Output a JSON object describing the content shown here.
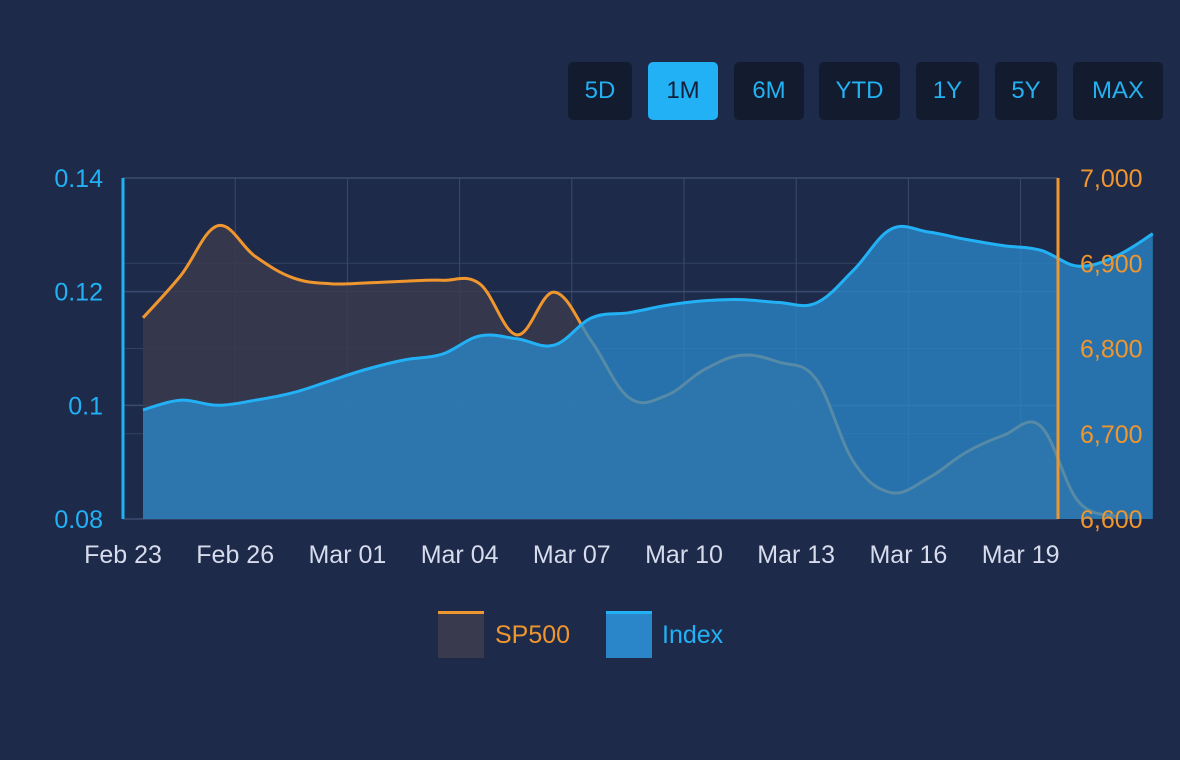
{
  "range_selector": {
    "buttons": [
      {
        "label": "5D",
        "active": false
      },
      {
        "label": "1M",
        "active": true
      },
      {
        "label": "6M",
        "active": false
      },
      {
        "label": "YTD",
        "active": false
      },
      {
        "label": "1Y",
        "active": false
      },
      {
        "label": "5Y",
        "active": false
      },
      {
        "label": "MAX",
        "active": false
      }
    ]
  },
  "colors": {
    "background": "#1e2a4a",
    "index": "#22b1f5",
    "index_fill": "#2a86c8",
    "sp500": "#f0962e",
    "sp500_fill": "#3a3a4e",
    "grid": "#3b4a6e",
    "xtick": "#d6dcec",
    "button_bg": "#131b2e"
  },
  "chart_data": {
    "type": "area",
    "x_ticks": [
      "Feb 23",
      "Feb 26",
      "Mar 01",
      "Mar 04",
      "Mar 07",
      "Mar 10",
      "Mar 13",
      "Mar 16",
      "Mar 19"
    ],
    "x_range": [
      "2024-02-23",
      "2024-03-19"
    ],
    "y_left": {
      "min": 0.08,
      "max": 0.14,
      "ticks": [
        "0.08",
        "0.1",
        "0.12",
        "0.14"
      ],
      "tick_values": [
        0.08,
        0.1,
        0.12,
        0.14
      ]
    },
    "y_right": {
      "min": 6600,
      "max": 7000,
      "ticks": [
        "6,600",
        "6,700",
        "6,800",
        "6,900",
        "7,000"
      ],
      "tick_values": [
        6600,
        6700,
        6800,
        6900,
        7000
      ]
    },
    "grid": true,
    "legend_position": "bottom-center",
    "series": [
      {
        "name": "SP500",
        "axis": "right",
        "points": [
          [
            "2024-02-23",
            6836
          ],
          [
            "2024-02-24",
            6885
          ],
          [
            "2024-02-25",
            6944
          ],
          [
            "2024-02-26",
            6908
          ],
          [
            "2024-02-27",
            6883
          ],
          [
            "2024-02-28",
            6876
          ],
          [
            "2024-02-29",
            6877
          ],
          [
            "2024-03-01",
            6879
          ],
          [
            "2024-03-02",
            6880
          ],
          [
            "2024-03-03",
            6876
          ],
          [
            "2024-03-04",
            6816
          ],
          [
            "2024-03-05",
            6866
          ],
          [
            "2024-03-06",
            6808
          ],
          [
            "2024-03-07",
            6742
          ],
          [
            "2024-03-08",
            6745
          ],
          [
            "2024-03-09",
            6775
          ],
          [
            "2024-03-10",
            6792
          ],
          [
            "2024-03-11",
            6784
          ],
          [
            "2024-03-12",
            6764
          ],
          [
            "2024-03-13",
            6667
          ],
          [
            "2024-03-14",
            6631
          ],
          [
            "2024-03-15",
            6648
          ],
          [
            "2024-03-16",
            6678
          ],
          [
            "2024-03-17",
            6698
          ],
          [
            "2024-03-18",
            6709
          ],
          [
            "2024-03-19",
            6621
          ],
          [
            "2024-03-20",
            6603
          ]
        ]
      },
      {
        "name": "Index",
        "axis": "left",
        "points": [
          [
            "2024-02-23",
            0.0992
          ],
          [
            "2024-02-24",
            0.1009
          ],
          [
            "2024-02-25",
            0.1
          ],
          [
            "2024-02-26",
            0.1009
          ],
          [
            "2024-02-27",
            0.1022
          ],
          [
            "2024-02-28",
            0.1043
          ],
          [
            "2024-02-29",
            0.1064
          ],
          [
            "2024-03-01",
            0.108
          ],
          [
            "2024-03-02",
            0.109
          ],
          [
            "2024-03-03",
            0.1122
          ],
          [
            "2024-03-04",
            0.1117
          ],
          [
            "2024-03-05",
            0.1106
          ],
          [
            "2024-03-06",
            0.1154
          ],
          [
            "2024-03-07",
            0.1163
          ],
          [
            "2024-03-08",
            0.1176
          ],
          [
            "2024-03-09",
            0.1184
          ],
          [
            "2024-03-10",
            0.1186
          ],
          [
            "2024-03-11",
            0.1181
          ],
          [
            "2024-03-12",
            0.118
          ],
          [
            "2024-03-13",
            0.1238
          ],
          [
            "2024-03-14",
            0.131
          ],
          [
            "2024-03-15",
            0.1305
          ],
          [
            "2024-03-16",
            0.1292
          ],
          [
            "2024-03-17",
            0.1281
          ],
          [
            "2024-03-18",
            0.1273
          ],
          [
            "2024-03-19",
            0.1245
          ],
          [
            "2024-03-20",
            0.1262
          ],
          [
            "2024-03-21",
            0.1302
          ]
        ]
      }
    ]
  },
  "legend": [
    {
      "label": "SP500"
    },
    {
      "label": "Index"
    }
  ]
}
